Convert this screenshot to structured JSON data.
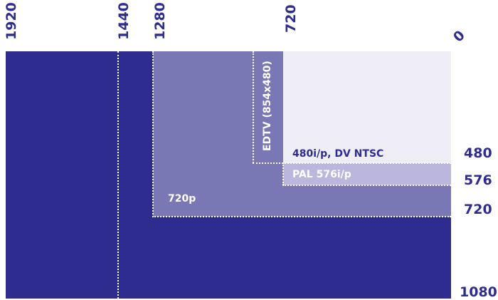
{
  "top_labels": {
    "w1920": "1920",
    "w1440": "1440",
    "w1280": "1280",
    "w720": "720",
    "w0": "0"
  },
  "right_labels": {
    "h480": "480",
    "h576": "576",
    "h720": "720",
    "h1080": "1080"
  },
  "regions": {
    "edtv": "EDTV (854x480)",
    "ntsc": "480i/p, DV NTSC",
    "pal": "PAL 576i/p",
    "hd720": "720p"
  },
  "colors": {
    "full_hd": "#2e2d8f",
    "hd720": "#7a77b5",
    "pal": "#bab6dd",
    "ntsc": "#efeef6",
    "label_text": "#2e2d8f"
  }
}
